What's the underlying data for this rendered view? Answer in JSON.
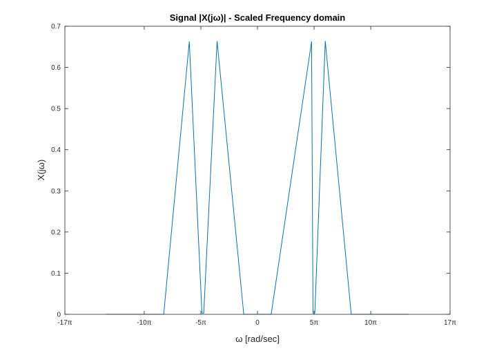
{
  "chart_data": {
    "type": "line",
    "title": "Signal |X(jω)| - Scaled Frequency domain",
    "xlabel": "ω [rad/sec]",
    "ylabel": "X(jω)",
    "xlim": [
      -53.4,
      53.4
    ],
    "ylim": [
      0,
      0.7
    ],
    "x_ticks": [
      {
        "value": -53.4,
        "label": "-17π"
      },
      {
        "value": -31.4,
        "label": "-10π"
      },
      {
        "value": -15.7,
        "label": "-5π"
      },
      {
        "value": 0,
        "label": "0"
      },
      {
        "value": 15.7,
        "label": "5π"
      },
      {
        "value": 31.4,
        "label": "10π"
      },
      {
        "value": 53.4,
        "label": "17π"
      }
    ],
    "y_ticks": [
      0,
      0.1,
      0.2,
      0.3,
      0.4,
      0.5,
      0.6,
      0.7
    ],
    "grid": false,
    "series": [
      {
        "color": "#0072BD",
        "x": [
          -42.0,
          -26.0,
          -18.9,
          -15.4,
          -14.9,
          -11.2,
          -3.8,
          3.8,
          15.0,
          15.4,
          15.9,
          18.8,
          26.0,
          42.0
        ],
        "y": [
          0,
          0,
          0.663,
          0.003,
          0.003,
          0.664,
          0,
          0,
          0.663,
          0.003,
          0.003,
          0.664,
          0,
          0
        ]
      }
    ]
  }
}
